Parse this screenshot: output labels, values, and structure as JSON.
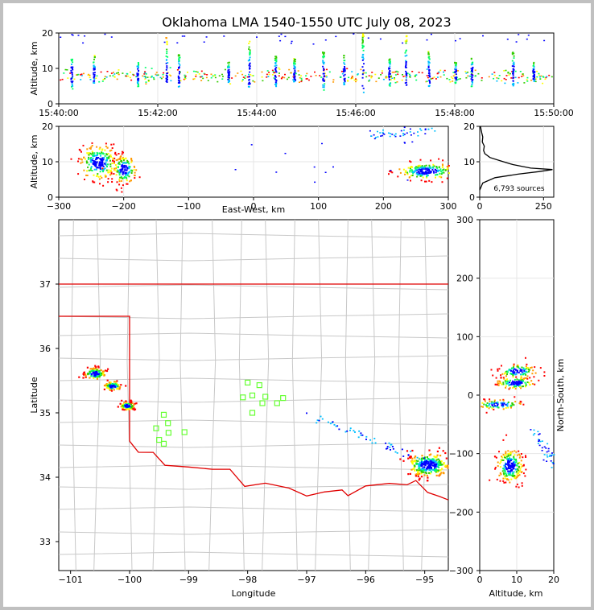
{
  "title": "Oklahoma LMA 1540-1550 UTC July 08, 2023",
  "chart_data": [
    {
      "panel": "altitude-time",
      "type": "scatter",
      "ylabel": "Altitude, km",
      "xlim": [
        "15:40:00",
        "15:50:00"
      ],
      "ylim": [
        0,
        20
      ],
      "x_ticks": [
        "15:40:00",
        "15:42:00",
        "15:44:00",
        "15:46:00",
        "15:48:00",
        "15:50:00"
      ],
      "y_ticks": [
        "0",
        "10",
        "20"
      ],
      "columns": [
        {
          "t": 15,
          "lo": 4,
          "hi": 13
        },
        {
          "t": 42,
          "lo": 6,
          "hi": 14
        },
        {
          "t": 95,
          "lo": 5,
          "hi": 12
        },
        {
          "t": 130,
          "lo": 6,
          "hi": 19
        },
        {
          "t": 145,
          "lo": 5,
          "hi": 15
        },
        {
          "t": 205,
          "lo": 6,
          "hi": 12
        },
        {
          "t": 230,
          "lo": 5,
          "hi": 18
        },
        {
          "t": 262,
          "lo": 5,
          "hi": 14
        },
        {
          "t": 285,
          "lo": 6,
          "hi": 13
        },
        {
          "t": 320,
          "lo": 4,
          "hi": 15
        },
        {
          "t": 345,
          "lo": 5,
          "hi": 14
        },
        {
          "t": 368,
          "lo": 3,
          "hi": 20
        },
        {
          "t": 400,
          "lo": 5,
          "hi": 13
        },
        {
          "t": 420,
          "lo": 5,
          "hi": 20
        },
        {
          "t": 448,
          "lo": 5,
          "hi": 15
        },
        {
          "t": 480,
          "lo": 6,
          "hi": 12
        },
        {
          "t": 500,
          "lo": 5,
          "hi": 13
        },
        {
          "t": 550,
          "lo": 5,
          "hi": 15
        },
        {
          "t": 575,
          "lo": 6,
          "hi": 12
        }
      ]
    },
    {
      "panel": "altitude-eastwest",
      "type": "scatter",
      "xlabel": "East-West, km",
      "ylabel": "Altitude, km",
      "xlim": [
        -300,
        300
      ],
      "ylim": [
        0,
        20
      ],
      "x_ticks": [
        "−300",
        "−200",
        "−100",
        "0",
        "100",
        "200",
        "300"
      ],
      "y_ticks": [
        "0",
        "10",
        "20"
      ],
      "clusters": [
        {
          "x": -240,
          "y": 10,
          "sx": 14,
          "sy": 2.5,
          "n": 230
        },
        {
          "x": -200,
          "y": 8,
          "sx": 9,
          "sy": 2,
          "n": 150
        },
        {
          "x": 265,
          "y": 7.5,
          "sx": 22,
          "sy": 1.2,
          "n": 210
        }
      ],
      "trail": {
        "from": [
          180,
          17.5
        ],
        "to": [
          300,
          20
        ],
        "n": 50
      }
    },
    {
      "panel": "altitude-histogram",
      "type": "line",
      "ylim": [
        0,
        20
      ],
      "xlim": [
        0,
        290
      ],
      "x_ticks": [
        "0",
        "250"
      ],
      "y_ticks": [
        "0",
        "10",
        "20"
      ],
      "annotation": "6,793 sources",
      "profile": [
        [
          0,
          2
        ],
        [
          12,
          4
        ],
        [
          60,
          5.5
        ],
        [
          150,
          6.5
        ],
        [
          230,
          7.2
        ],
        [
          285,
          7.8
        ],
        [
          200,
          8.2
        ],
        [
          130,
          9.2
        ],
        [
          80,
          10.3
        ],
        [
          40,
          11.2
        ],
        [
          20,
          12.3
        ],
        [
          15,
          13.2
        ],
        [
          18,
          14.4
        ],
        [
          10,
          15.6
        ],
        [
          12,
          17
        ],
        [
          8,
          18.2
        ],
        [
          5,
          19.2
        ],
        [
          3,
          20
        ]
      ]
    },
    {
      "panel": "plan-view-map",
      "type": "scatter",
      "xlabel": "Longitude",
      "ylabel": "Latitude",
      "xlim": [
        -101.2,
        -94.6
      ],
      "ylim": [
        32.55,
        38.0
      ],
      "x_ticks": [
        "−101",
        "−100",
        "−99",
        "−98",
        "−97",
        "−96",
        "−95"
      ],
      "y_ticks": [
        "33",
        "34",
        "35",
        "36",
        "37"
      ],
      "clusters": [
        {
          "lon": -100.6,
          "lat": 35.62,
          "s": 0.09,
          "n": 110
        },
        {
          "lon": -100.3,
          "lat": 35.43,
          "s": 0.07,
          "n": 90
        },
        {
          "lon": -100.05,
          "lat": 35.12,
          "s": 0.06,
          "n": 90
        },
        {
          "lon": -94.95,
          "lat": 34.2,
          "s": 0.18,
          "n": 260
        }
      ],
      "stations": [
        [
          -98.0,
          35.47
        ],
        [
          -97.8,
          35.43
        ],
        [
          -98.08,
          35.24
        ],
        [
          -97.92,
          35.27
        ],
        [
          -97.75,
          35.15
        ],
        [
          -97.7,
          35.25
        ],
        [
          -97.5,
          35.15
        ],
        [
          -97.4,
          35.23
        ],
        [
          -97.92,
          35.0
        ],
        [
          -99.42,
          34.97
        ],
        [
          -99.35,
          34.84
        ],
        [
          -99.55,
          34.76
        ],
        [
          -99.34,
          34.69
        ],
        [
          -99.07,
          34.7
        ],
        [
          -99.5,
          34.58
        ],
        [
          -99.42,
          34.52
        ]
      ]
    },
    {
      "panel": "northsouth-altitude",
      "type": "scatter",
      "xlabel": "Altitude, km",
      "ylabel": "North-South, km",
      "xlim": [
        0,
        20
      ],
      "ylim": [
        -300,
        300
      ],
      "x_ticks": [
        "0",
        "10",
        "20"
      ],
      "y_ticks": [
        "−300",
        "−200",
        "−100",
        "0",
        "100",
        "200",
        "300"
      ],
      "clusters": [
        {
          "alt": 10,
          "ns": 42,
          "salt": 2.5,
          "sns": 6,
          "n": 110
        },
        {
          "alt": 9.5,
          "ns": 22,
          "salt": 2.5,
          "sns": 5,
          "n": 110
        },
        {
          "alt": 5,
          "ns": -15,
          "salt": 3,
          "sns": 4,
          "n": 90
        },
        {
          "alt": 8,
          "ns": -120,
          "salt": 1.8,
          "sns": 14,
          "n": 230
        }
      ],
      "trail": {
        "from": [
          14,
          -55
        ],
        "to": [
          20,
          -115
        ],
        "n": 40
      }
    }
  ]
}
